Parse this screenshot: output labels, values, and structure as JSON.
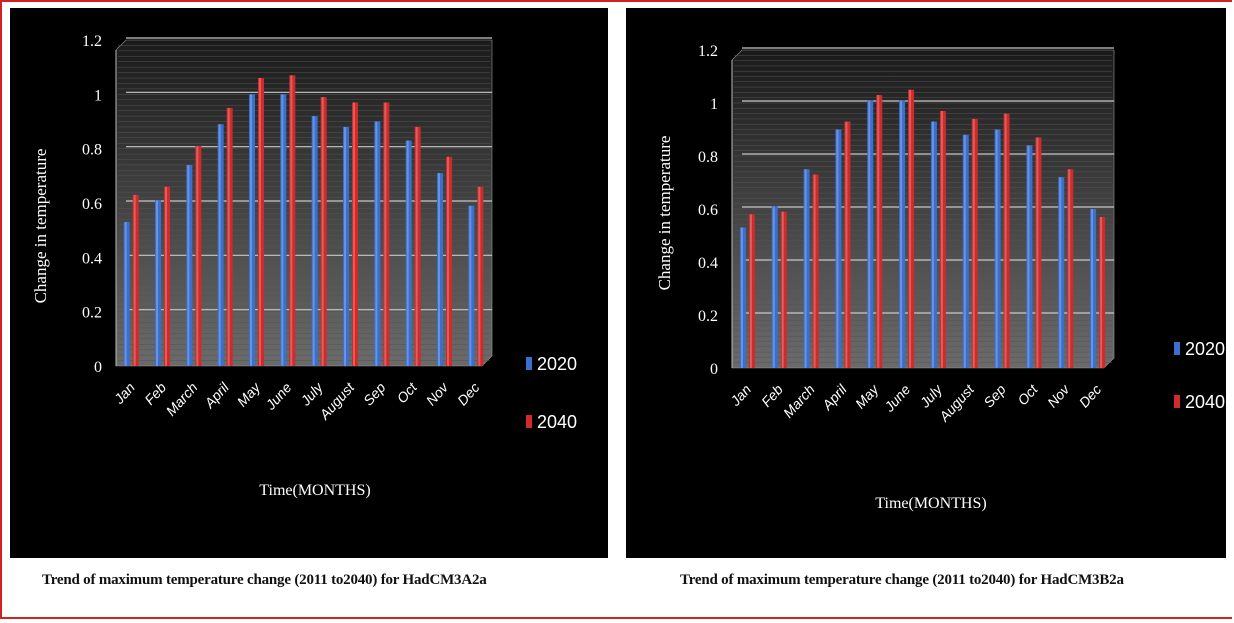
{
  "colors": {
    "background": "#000000",
    "plot_top": "#1a1a1a",
    "plot_bottom": "#6b6b6b",
    "gridline": "#c8c8c8",
    "series_2020": "#3a6fd0",
    "series_2040": "#d02a2a",
    "text": "#ffffff",
    "border": "#d42020"
  },
  "chart_data": [
    {
      "type": "bar",
      "title": "",
      "xlabel": "Time(MONTHS)",
      "ylabel": "Change in temperature",
      "ylim": [
        0,
        1.2
      ],
      "yticks": [
        0,
        0.2,
        0.4,
        0.6,
        0.8,
        1,
        1.2
      ],
      "ytick_labels": [
        "0",
        "0.2",
        "0.4",
        "0.6",
        "0.8",
        "1",
        "1.2"
      ],
      "grid": true,
      "legend_position": "right",
      "categories": [
        "Jan",
        "Feb",
        "March",
        "April",
        "May",
        "June",
        "July",
        "August",
        "Sep",
        "Oct",
        "Nov",
        "Dec"
      ],
      "series": [
        {
          "name": "2020",
          "values": [
            0.53,
            0.61,
            0.74,
            0.89,
            1.0,
            1.0,
            0.92,
            0.88,
            0.9,
            0.83,
            0.71,
            0.59
          ]
        },
        {
          "name": "2040",
          "values": [
            0.63,
            0.66,
            0.81,
            0.95,
            1.06,
            1.07,
            0.99,
            0.97,
            0.97,
            0.88,
            0.77,
            0.66
          ]
        }
      ],
      "caption": "Trend of maximum temperature change (2011 to2040) for HadCM3A2a"
    },
    {
      "type": "bar",
      "title": "",
      "xlabel": "Time(MONTHS)",
      "ylabel": "Change in temperature",
      "ylim": [
        0,
        1.2
      ],
      "yticks": [
        0,
        0.2,
        0.4,
        0.6,
        0.8,
        1,
        1.2
      ],
      "ytick_labels": [
        "0",
        "0.2",
        "0.4",
        "0.6",
        "0.8",
        "1",
        "1.2"
      ],
      "grid": true,
      "legend_position": "right",
      "categories": [
        "Jan",
        "Feb",
        "March",
        "April",
        "May",
        "June",
        "July",
        "August",
        "Sep",
        "Oct",
        "Nov",
        "Dec"
      ],
      "series": [
        {
          "name": "2020",
          "values": [
            0.53,
            0.61,
            0.75,
            0.9,
            1.01,
            1.01,
            0.93,
            0.88,
            0.9,
            0.84,
            0.72,
            0.6
          ]
        },
        {
          "name": "2040",
          "values": [
            0.58,
            0.59,
            0.73,
            0.93,
            1.03,
            1.05,
            0.97,
            0.94,
            0.96,
            0.87,
            0.75,
            0.57
          ]
        }
      ],
      "caption": "Trend of maximum temperature change (2011 to2040) for HadCM3B2a"
    }
  ]
}
